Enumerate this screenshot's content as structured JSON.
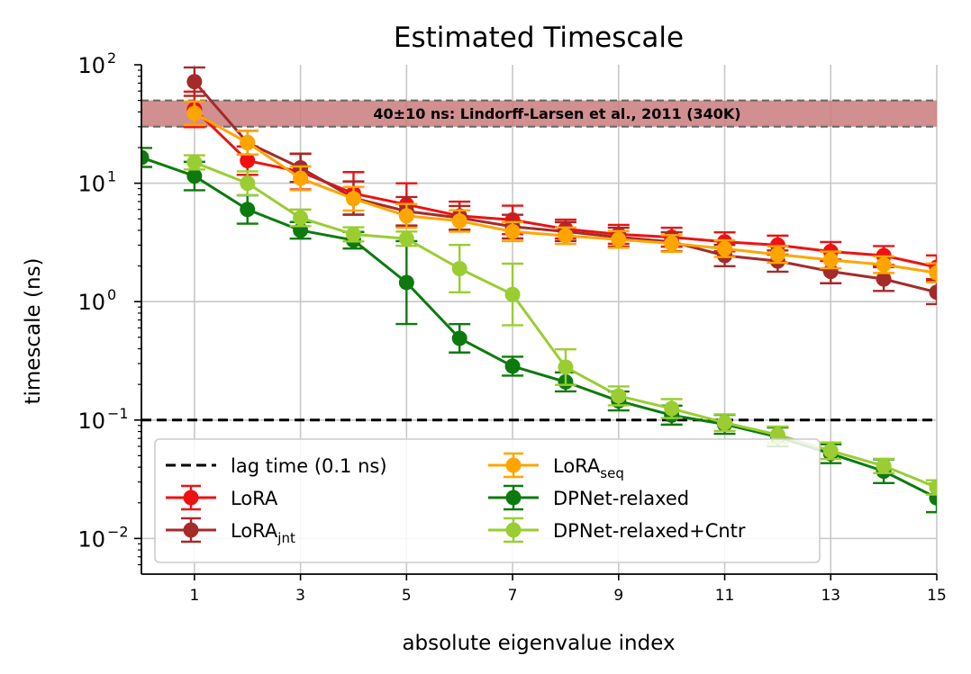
{
  "chart_data": {
    "type": "line",
    "title": "Estimated Timescale",
    "xlabel": "absolute eigenvalue index",
    "ylabel": "timescale (ns)",
    "yscale": "log",
    "xlim": [
      0,
      15
    ],
    "ylim": [
      0.005,
      100
    ],
    "xticks": [
      1,
      3,
      5,
      7,
      9,
      11,
      13,
      15
    ],
    "xtick_labels": [
      "1",
      "3",
      "5",
      "7",
      "9",
      "11",
      "13",
      "15"
    ],
    "yticks": [
      {
        "value": 100,
        "base": "10",
        "exp": "2"
      },
      {
        "value": 10,
        "base": "10",
        "exp": "1"
      },
      {
        "value": 1,
        "base": "10",
        "exp": "0"
      },
      {
        "value": 0.1,
        "base": "10",
        "exp": "−1"
      },
      {
        "value": 0.01,
        "base": "10",
        "exp": "−2"
      }
    ],
    "grid": true,
    "reference_band": {
      "low": 30,
      "high": 50,
      "color": "#c97b7d",
      "label": "40±10 ns: Lindorff-Larsen et al., 2011 (340K)"
    },
    "lag_line": {
      "value": 0.1,
      "label": "lag time (0.1 ns)",
      "color": "#000000"
    },
    "series": [
      {
        "key": "lora",
        "name": "LoRA",
        "color": "#ee1111",
        "x": [
          1,
          2,
          3,
          4,
          5,
          6,
          7,
          8,
          9,
          10,
          11,
          12,
          13,
          14,
          15
        ],
        "values": [
          42,
          15.5,
          12.5,
          8.2,
          6.6,
          5.3,
          4.9,
          4.1,
          3.7,
          3.5,
          3.2,
          3.0,
          2.65,
          2.45,
          1.95
        ],
        "err": [
          0.15,
          0.12,
          0.15,
          0.18,
          0.18,
          0.12,
          0.12,
          0.08,
          0.08,
          0.08,
          0.08,
          0.08,
          0.08,
          0.08,
          0.1
        ]
      },
      {
        "key": "lora_jnt",
        "name": "LoRA",
        "sub": "jnt",
        "color": "#a52a2a",
        "x": [
          1,
          2,
          3,
          4,
          5,
          6,
          7,
          8,
          9,
          10,
          11,
          12,
          13,
          14,
          15
        ],
        "values": [
          72,
          22,
          13.5,
          7.5,
          5.8,
          5.1,
          4.3,
          3.9,
          3.5,
          3.2,
          2.45,
          2.2,
          1.8,
          1.55,
          1.2
        ],
        "err": [
          0.12,
          0.1,
          0.12,
          0.14,
          0.12,
          0.1,
          0.1,
          0.08,
          0.08,
          0.08,
          0.09,
          0.09,
          0.1,
          0.1,
          0.1
        ]
      },
      {
        "key": "lora_seq",
        "name": "LoRA",
        "sub": "seq",
        "color": "#ffa500",
        "x": [
          1,
          2,
          3,
          4,
          5,
          6,
          7,
          8,
          9,
          10,
          11,
          12,
          13,
          14,
          15
        ],
        "values": [
          39,
          22,
          11,
          7.4,
          5.3,
          4.8,
          3.9,
          3.6,
          3.35,
          3.1,
          2.8,
          2.5,
          2.25,
          2.05,
          1.75
        ],
        "err": [
          0.1,
          0.1,
          0.1,
          0.1,
          0.1,
          0.09,
          0.08,
          0.07,
          0.07,
          0.07,
          0.07,
          0.07,
          0.07,
          0.07,
          0.08
        ]
      },
      {
        "key": "dpnet",
        "name": "DPNet-relaxed",
        "color": "#0d7a0d",
        "x": [
          0,
          1,
          2,
          3,
          4,
          5,
          6,
          7,
          8,
          9,
          10,
          11,
          12,
          13,
          14,
          15
        ],
        "values": [
          16.5,
          11.5,
          6.0,
          4.0,
          3.3,
          1.45,
          0.49,
          0.285,
          0.21,
          0.145,
          0.11,
          0.092,
          0.072,
          0.052,
          0.037,
          0.022
        ],
        "err": [
          0.08,
          0.12,
          0.12,
          0.07,
          0.07,
          0.35,
          0.12,
          0.08,
          0.08,
          0.08,
          0.08,
          0.08,
          0.08,
          0.08,
          0.1,
          0.12
        ]
      },
      {
        "key": "dpnet_cntr",
        "name": "DPNet-relaxed+Cntr",
        "color": "#9acd32",
        "x": [
          1,
          2,
          3,
          4,
          5,
          6,
          7,
          8,
          9,
          10,
          11,
          12,
          13,
          14,
          15
        ],
        "values": [
          15,
          10,
          5.1,
          3.7,
          3.4,
          1.9,
          1.15,
          0.28,
          0.16,
          0.125,
          0.095,
          0.075,
          0.055,
          0.041,
          0.027
        ],
        "err": [
          0.06,
          0.1,
          0.07,
          0.06,
          0.06,
          0.2,
          0.26,
          0.15,
          0.08,
          0.08,
          0.07,
          0.07,
          0.07,
          0.06,
          0.06
        ]
      }
    ],
    "legend": {
      "placement": "lower-left",
      "entries": [
        {
          "kind": "lag",
          "label": "lag time (0.1 ns)"
        },
        {
          "kind": "series",
          "key": "lora",
          "label": "LoRA"
        },
        {
          "kind": "series",
          "key": "lora_jnt",
          "label": "LoRA",
          "sub": "jnt"
        },
        {
          "kind": "series",
          "key": "lora_seq",
          "label": "LoRA",
          "sub": "seq"
        },
        {
          "kind": "series",
          "key": "dpnet",
          "label": "DPNet-relaxed"
        },
        {
          "kind": "series",
          "key": "dpnet_cntr",
          "label": "DPNet-relaxed+Cntr"
        }
      ]
    }
  }
}
